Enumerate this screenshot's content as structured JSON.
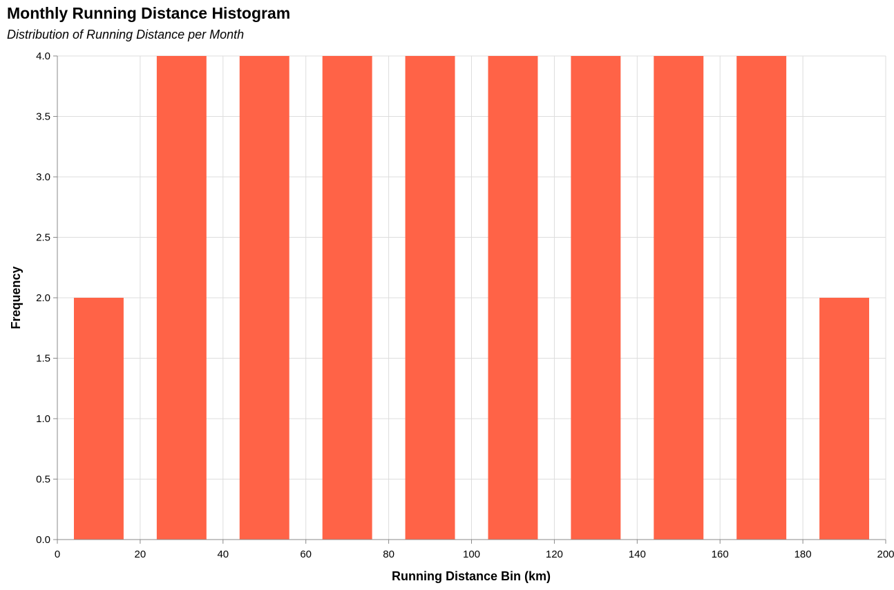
{
  "chart_data": {
    "type": "bar",
    "title": "Monthly Running Distance Histogram",
    "subtitle": "Distribution of Running Distance per Month",
    "xlabel": "Running Distance Bin (km)",
    "ylabel": "Frequency",
    "bin_width": 20,
    "bins": [
      {
        "start": 0,
        "end": 20,
        "count": 2
      },
      {
        "start": 20,
        "end": 40,
        "count": 4
      },
      {
        "start": 40,
        "end": 60,
        "count": 4
      },
      {
        "start": 60,
        "end": 80,
        "count": 4
      },
      {
        "start": 80,
        "end": 100,
        "count": 4
      },
      {
        "start": 100,
        "end": 120,
        "count": 4
      },
      {
        "start": 120,
        "end": 140,
        "count": 4
      },
      {
        "start": 140,
        "end": 160,
        "count": 4
      },
      {
        "start": 160,
        "end": 180,
        "count": 4
      },
      {
        "start": 180,
        "end": 200,
        "count": 2
      }
    ],
    "xlim": [
      0,
      200
    ],
    "ylim": [
      0,
      4
    ],
    "x_ticks": [
      "0",
      "20",
      "40",
      "60",
      "80",
      "100",
      "120",
      "140",
      "160",
      "180",
      "200"
    ],
    "y_ticks": [
      "0.0",
      "0.5",
      "1.0",
      "1.5",
      "2.0",
      "2.5",
      "3.0",
      "3.5",
      "4.0"
    ],
    "grid": true,
    "bar_color": "#ff6347"
  }
}
